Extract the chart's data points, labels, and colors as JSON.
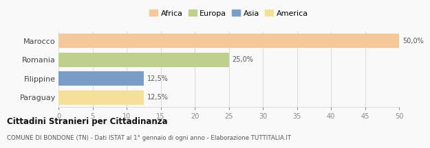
{
  "categories": [
    "Marocco",
    "Romania",
    "Filippine",
    "Paraguay"
  ],
  "values": [
    50.0,
    25.0,
    12.5,
    12.5
  ],
  "labels": [
    "50,0%",
    "25,0%",
    "12,5%",
    "12,5%"
  ],
  "colors": [
    "#F5C89A",
    "#BFCF8E",
    "#7B9EC9",
    "#F5E09A"
  ],
  "legend": [
    "Africa",
    "Europa",
    "Asia",
    "America"
  ],
  "legend_colors": [
    "#F5C89A",
    "#BFCF8E",
    "#7B9EC9",
    "#F5E09A"
  ],
  "xlim": [
    0,
    50
  ],
  "xticks": [
    0,
    5,
    10,
    15,
    20,
    25,
    30,
    35,
    40,
    45,
    50
  ],
  "title_bold": "Cittadini Stranieri per Cittadinanza",
  "subtitle": "COMUNE DI BONDONE (TN) - Dati ISTAT al 1° gennaio di ogni anno - Elaborazione TUTTITALIA.IT",
  "bg_color": "#f9f9f9",
  "grid_color": "#dddddd"
}
